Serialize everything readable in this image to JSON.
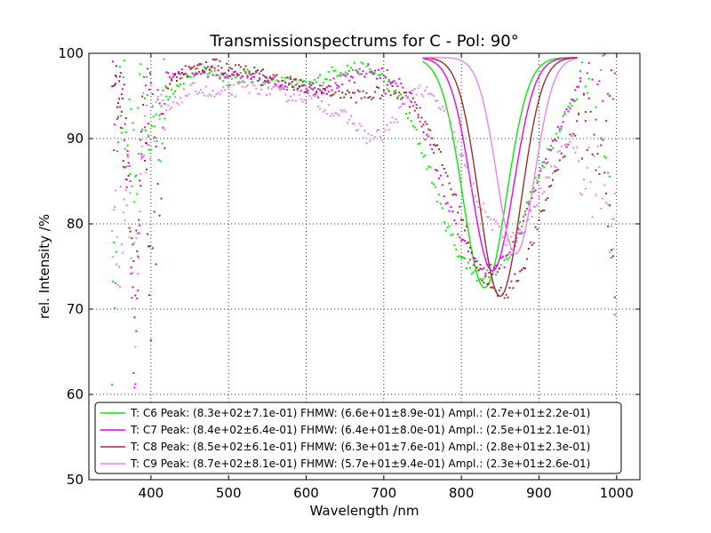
{
  "chart_data": {
    "type": "scatter",
    "title": "Transmissionspectrums for C - Pol: 90°",
    "xlabel": "Wavelength  /nm",
    "ylabel": "rel. Intensity  /%",
    "xlim": [
      320,
      1030
    ],
    "ylim": [
      50,
      100
    ],
    "xticks": [
      400,
      500,
      600,
      700,
      800,
      900,
      1000
    ],
    "yticks": [
      50,
      60,
      70,
      80,
      90,
      100
    ],
    "grid": true,
    "legend_position": "lower-left",
    "series": [
      {
        "name": "T: C6 Peak: (8.3e+02±7.1e-01)  FHMW: (6.6e+01±8.9e-01)  Ampl.: (2.7e+01±2.2e-01)",
        "color": "#00ee00",
        "peak": 830,
        "fwhm": 66,
        "ampl": 27,
        "fit_range": [
          750,
          950
        ],
        "points": [
          [
            350,
            66
          ],
          [
            360,
            95
          ],
          [
            370,
            92
          ],
          [
            380,
            84
          ],
          [
            390,
            98
          ],
          [
            400,
            91
          ],
          [
            410,
            92
          ],
          [
            420,
            95
          ],
          [
            440,
            97
          ],
          [
            460,
            98
          ],
          [
            480,
            98
          ],
          [
            500,
            97
          ],
          [
            520,
            97.5
          ],
          [
            540,
            97
          ],
          [
            560,
            96.5
          ],
          [
            580,
            96.5
          ],
          [
            600,
            96
          ],
          [
            620,
            97
          ],
          [
            640,
            98
          ],
          [
            660,
            98.3
          ],
          [
            680,
            98
          ],
          [
            700,
            97
          ],
          [
            720,
            95
          ],
          [
            740,
            91
          ],
          [
            760,
            86
          ],
          [
            780,
            80
          ],
          [
            800,
            76
          ],
          [
            820,
            74
          ],
          [
            840,
            74
          ],
          [
            860,
            76
          ],
          [
            880,
            81
          ],
          [
            900,
            86
          ],
          [
            920,
            90
          ],
          [
            940,
            94
          ],
          [
            960,
            97
          ],
          [
            980,
            99
          ],
          [
            1000,
            70
          ]
        ]
      },
      {
        "name": "T: C7 Peak: (8.4e+02±6.4e-01)  FHMW: (6.4e+01±8.0e-01)  Ampl.: (2.5e+01±2.1e-01)",
        "color": "#ee00ee",
        "peak": 840,
        "fwhm": 64,
        "ampl": 25,
        "fit_range": [
          750,
          950
        ],
        "points": [
          [
            350,
            94
          ],
          [
            360,
            93
          ],
          [
            370,
            88
          ],
          [
            380,
            62
          ],
          [
            390,
            97
          ],
          [
            400,
            92
          ],
          [
            420,
            97
          ],
          [
            440,
            98
          ],
          [
            460,
            98
          ],
          [
            480,
            98
          ],
          [
            500,
            97.5
          ],
          [
            520,
            97
          ],
          [
            540,
            97
          ],
          [
            560,
            96.5
          ],
          [
            580,
            96.5
          ],
          [
            600,
            96
          ],
          [
            620,
            96
          ],
          [
            640,
            96.5
          ],
          [
            660,
            97
          ],
          [
            680,
            98
          ],
          [
            700,
            97.5
          ],
          [
            720,
            96.5
          ],
          [
            740,
            94
          ],
          [
            760,
            89
          ],
          [
            780,
            83
          ],
          [
            800,
            78
          ],
          [
            820,
            75
          ],
          [
            840,
            74.5
          ],
          [
            860,
            76
          ],
          [
            880,
            80
          ],
          [
            900,
            85
          ],
          [
            920,
            90
          ],
          [
            940,
            94
          ],
          [
            960,
            97
          ],
          [
            980,
            95
          ],
          [
            1000,
            95
          ]
        ]
      },
      {
        "name": "T: C8 Peak: (8.5e+02±6.1e-01)  FHMW: (6.3e+01±7.6e-01)  Ampl.: (2.8e+01±2.3e-01)",
        "color": "#a52a2a",
        "peak": 850,
        "fwhm": 63,
        "ampl": 28,
        "fit_range": [
          750,
          950
        ],
        "points": [
          [
            350,
            98
          ],
          [
            360,
            97
          ],
          [
            370,
            87
          ],
          [
            380,
            73
          ],
          [
            390,
            98
          ],
          [
            400,
            70
          ],
          [
            420,
            96
          ],
          [
            440,
            98
          ],
          [
            460,
            98
          ],
          [
            480,
            99
          ],
          [
            500,
            98
          ],
          [
            520,
            98
          ],
          [
            540,
            97.5
          ],
          [
            560,
            97
          ],
          [
            580,
            96.5
          ],
          [
            600,
            96
          ],
          [
            620,
            95.5
          ],
          [
            640,
            95.5
          ],
          [
            660,
            95
          ],
          [
            680,
            95
          ],
          [
            700,
            95.5
          ],
          [
            720,
            95.5
          ],
          [
            740,
            94
          ],
          [
            760,
            91
          ],
          [
            780,
            86
          ],
          [
            800,
            81
          ],
          [
            820,
            75
          ],
          [
            840,
            72
          ],
          [
            860,
            72
          ],
          [
            880,
            75
          ],
          [
            900,
            80
          ],
          [
            920,
            86
          ],
          [
            940,
            90
          ],
          [
            960,
            93
          ],
          [
            980,
            88
          ],
          [
            1000,
            72
          ]
        ]
      },
      {
        "name": "T: C9 Peak: (8.7e+02±8.1e-01)  FHMW: (5.7e+01±9.4e-01)  Ampl.: (2.3e+01±2.6e-01)",
        "color": "#ee82ee",
        "peak": 870,
        "fwhm": 57,
        "ampl": 23,
        "fit_range": [
          750,
          950
        ],
        "points": [
          [
            350,
            80
          ],
          [
            360,
            78
          ],
          [
            370,
            85
          ],
          [
            380,
            71
          ],
          [
            390,
            94
          ],
          [
            400,
            88
          ],
          [
            420,
            93
          ],
          [
            440,
            95
          ],
          [
            460,
            96
          ],
          [
            480,
            95
          ],
          [
            500,
            95.5
          ],
          [
            520,
            96
          ],
          [
            540,
            96
          ],
          [
            560,
            95.5
          ],
          [
            580,
            95
          ],
          [
            600,
            95
          ],
          [
            620,
            94
          ],
          [
            640,
            93
          ],
          [
            660,
            92
          ],
          [
            680,
            90
          ],
          [
            700,
            90.5
          ],
          [
            720,
            93
          ],
          [
            740,
            96
          ],
          [
            760,
            95
          ],
          [
            780,
            93
          ],
          [
            800,
            88
          ],
          [
            820,
            83
          ],
          [
            840,
            80
          ],
          [
            860,
            78
          ],
          [
            880,
            79
          ],
          [
            900,
            83
          ],
          [
            920,
            87
          ],
          [
            940,
            90
          ],
          [
            960,
            87
          ],
          [
            980,
            84
          ],
          [
            1000,
            79
          ]
        ]
      }
    ]
  }
}
